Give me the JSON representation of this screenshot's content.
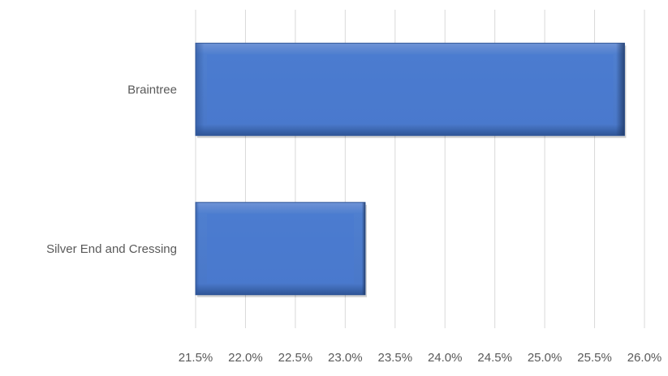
{
  "chart_data": {
    "type": "bar",
    "orientation": "horizontal",
    "categories": [
      "Braintree",
      "Silver End and Cressing"
    ],
    "values": [
      25.8,
      23.2
    ],
    "unit": "%",
    "xlim": [
      21.5,
      26.0
    ],
    "xticks": [
      "21.5%",
      "22.0%",
      "22.5%",
      "23.0%",
      "23.5%",
      "24.0%",
      "24.5%",
      "25.0%",
      "25.5%",
      "26.0%"
    ],
    "title": "",
    "xlabel": "",
    "ylabel": "",
    "grid": "vertical",
    "legend": "none",
    "bar_color": "#4472C4"
  }
}
